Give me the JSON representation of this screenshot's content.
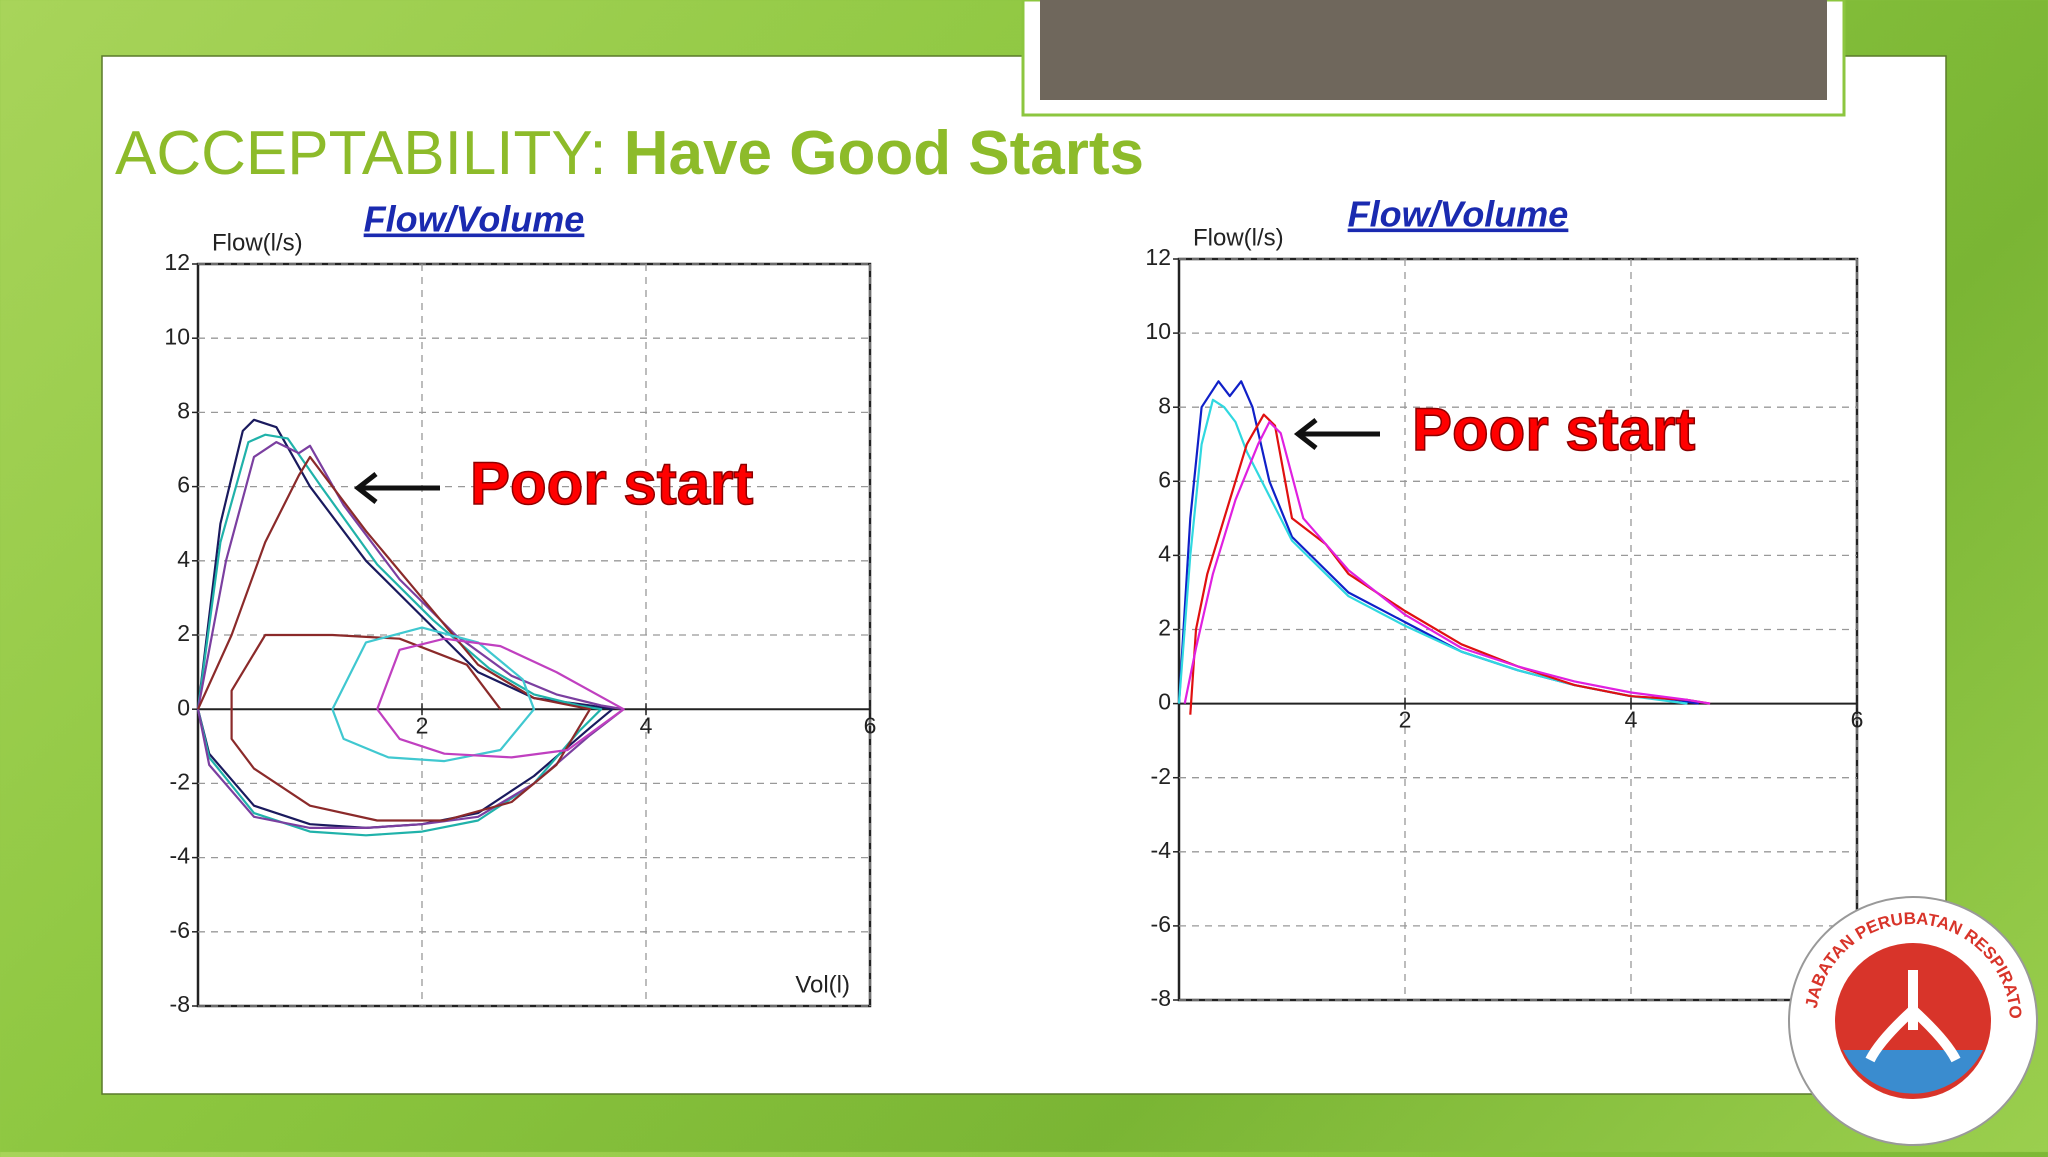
{
  "title_prefix": "ACCEPTABILITY: ",
  "title_emphasis": "Have Good Starts",
  "logo_text": "JABATAN PERUBATAN RESPIRATORI",
  "chart_data": [
    {
      "type": "line",
      "title": "Flow/Volume",
      "ylabel": "Flow(l/s)",
      "xlabel": "Vol(l)",
      "annotation": "Poor start",
      "xlim": [
        0,
        6
      ],
      "xticks": [
        2,
        4,
        6
      ],
      "ylim": [
        -8,
        12
      ],
      "yticks": [
        -8,
        -6,
        -4,
        -2,
        0,
        2,
        4,
        6,
        8,
        10,
        12
      ],
      "grid": true,
      "series": [
        {
          "color": "#1a1a5e",
          "x": [
            0,
            0.2,
            0.4,
            0.5,
            0.7,
            1.0,
            1.5,
            2.0,
            2.5,
            3.0,
            3.5,
            3.7,
            3.5,
            3.0,
            2.5,
            2.0,
            1.5,
            1.0,
            0.5,
            0.1,
            0
          ],
          "values": [
            0,
            5,
            7.5,
            7.8,
            7.6,
            6,
            4,
            2.5,
            1,
            0.3,
            0.1,
            0,
            -0.5,
            -1.8,
            -2.8,
            -3.1,
            -3.2,
            -3.1,
            -2.6,
            -1.2,
            0
          ]
        },
        {
          "color": "#20b2aa",
          "x": [
            0,
            0.2,
            0.45,
            0.6,
            0.8,
            1.1,
            1.6,
            2.1,
            2.6,
            3.0,
            3.4,
            3.6,
            3.4,
            3.0,
            2.5,
            2.0,
            1.5,
            1.0,
            0.5,
            0.1,
            0
          ],
          "values": [
            0,
            4.5,
            7.2,
            7.4,
            7.3,
            6,
            3.9,
            2.4,
            1.1,
            0.4,
            0.1,
            0,
            -0.6,
            -2,
            -3,
            -3.3,
            -3.4,
            -3.3,
            -2.8,
            -1.3,
            0
          ]
        },
        {
          "color": "#7b3fa0",
          "x": [
            0,
            0.25,
            0.5,
            0.7,
            0.9,
            1.0,
            1.3,
            1.8,
            2.3,
            2.8,
            3.2,
            3.6,
            3.8,
            3.5,
            3.0,
            2.5,
            2.0,
            1.5,
            1.0,
            0.5,
            0.1,
            0
          ],
          "values": [
            0,
            4,
            6.8,
            7.2,
            6.9,
            7.1,
            5.5,
            3.5,
            2,
            0.9,
            0.4,
            0.1,
            0,
            -0.7,
            -2,
            -2.9,
            -3.1,
            -3.2,
            -3.2,
            -2.9,
            -1.5,
            0
          ]
        },
        {
          "color": "#8b2a2a",
          "x": [
            0,
            0.3,
            0.6,
            0.9,
            1.0,
            1.5,
            2.0,
            2.5,
            3.0,
            3.5,
            3.2,
            2.8,
            2.2,
            1.6,
            1.0,
            0.5,
            0.3,
            0.3,
            0.6,
            1.2,
            1.8,
            2.4,
            2.7
          ],
          "values": [
            0,
            2,
            4.5,
            6.3,
            6.8,
            4.8,
            3,
            1.2,
            0.3,
            0,
            -1.5,
            -2.5,
            -3,
            -3,
            -2.6,
            -1.6,
            -0.8,
            0.5,
            2,
            2,
            1.9,
            1.2,
            0
          ]
        },
        {
          "color": "#40c8d0",
          "x": [
            1.2,
            1.5,
            2.0,
            2.5,
            2.9,
            3.0,
            2.7,
            2.2,
            1.7,
            1.3,
            1.2
          ],
          "values": [
            0,
            1.8,
            2.2,
            1.8,
            0.8,
            0,
            -1.1,
            -1.4,
            -1.3,
            -0.8,
            0
          ]
        },
        {
          "color": "#c040c0",
          "x": [
            1.6,
            1.8,
            2.2,
            2.7,
            3.2,
            3.8,
            3.3,
            2.8,
            2.2,
            1.8,
            1.6
          ],
          "values": [
            0,
            1.6,
            1.9,
            1.7,
            1.0,
            0,
            -1.1,
            -1.3,
            -1.2,
            -0.8,
            0
          ]
        }
      ]
    },
    {
      "type": "line",
      "title": "Flow/Volume",
      "ylabel": "Flow(l/s)",
      "annotation": "Poor start",
      "xlim": [
        0,
        6
      ],
      "xticks": [
        2,
        4,
        6
      ],
      "ylim": [
        -8,
        12
      ],
      "yticks": [
        -8,
        -6,
        -4,
        -2,
        0,
        2,
        4,
        6,
        8,
        10,
        12
      ],
      "grid": true,
      "series": [
        {
          "color": "#1020c8",
          "x": [
            0,
            0.1,
            0.2,
            0.35,
            0.45,
            0.55,
            0.65,
            0.8,
            1.0,
            1.5,
            2.0,
            2.5,
            3.0,
            3.5,
            4.0,
            4.4,
            4.6
          ],
          "values": [
            0,
            5,
            8,
            8.7,
            8.3,
            8.7,
            8,
            6,
            4.5,
            3,
            2.2,
            1.4,
            0.9,
            0.5,
            0.2,
            0.1,
            0
          ]
        },
        {
          "color": "#30d8e0",
          "x": [
            0,
            0.1,
            0.2,
            0.3,
            0.4,
            0.5,
            0.6,
            0.8,
            1.0,
            1.5,
            2.0,
            2.5,
            3.0,
            3.5,
            4.0,
            4.5
          ],
          "values": [
            0,
            4,
            7,
            8.2,
            8,
            7.6,
            6.8,
            5.6,
            4.4,
            2.9,
            2.1,
            1.4,
            0.9,
            0.5,
            0.2,
            0
          ]
        },
        {
          "color": "#e01010",
          "x": [
            0.1,
            0.15,
            0.25,
            0.4,
            0.6,
            0.75,
            0.85,
            1.0,
            1.3,
            1.5,
            2.0,
            2.5,
            3.0,
            3.5,
            4.0,
            4.5,
            4.7
          ],
          "values": [
            -0.3,
            2,
            3.5,
            5,
            7,
            7.8,
            7.5,
            5,
            4.3,
            3.5,
            2.5,
            1.6,
            1,
            0.5,
            0.2,
            0.1,
            0
          ]
        },
        {
          "color": "#e020e0",
          "x": [
            0.05,
            0.15,
            0.3,
            0.5,
            0.7,
            0.8,
            0.9,
            1.1,
            1.5,
            2.0,
            2.5,
            3.0,
            3.5,
            4.0,
            4.5,
            4.7
          ],
          "values": [
            0,
            1.5,
            3.5,
            5.5,
            7,
            7.6,
            7.3,
            5,
            3.6,
            2.4,
            1.5,
            1,
            0.6,
            0.3,
            0.1,
            0
          ]
        }
      ]
    }
  ]
}
